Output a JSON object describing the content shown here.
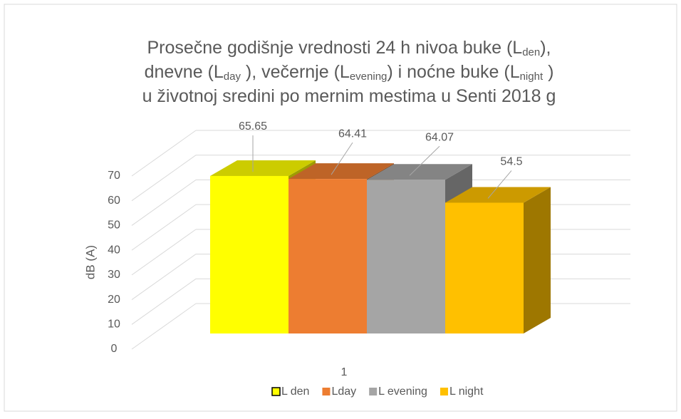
{
  "chart_data": {
    "type": "bar3d",
    "title": [
      [
        "Prosečne godišnje vrednosti 24 h nivoa buke (L",
        "den",
        "),"
      ],
      [
        "dnevne (L",
        "day",
        " ), večernje (L",
        "evening",
        ") i noćne buke (L",
        "night",
        " )"
      ],
      [
        "u životnoj sredini po mernim mestima u Senti 2018 g"
      ]
    ],
    "categories": [
      "1"
    ],
    "y_label": "dB (A)",
    "series": [
      {
        "name": "L den",
        "color": "#ffff00",
        "values": [
          65.65
        ]
      },
      {
        "name": "Lday",
        "color": "#ed7d31",
        "values": [
          64.41
        ]
      },
      {
        "name": "L evening",
        "color": "#a5a5a5",
        "values": [
          64.07
        ]
      },
      {
        "name": "L night",
        "color": "#ffc000",
        "values": [
          54.5
        ]
      }
    ],
    "ylim": [
      0,
      70
    ],
    "yticks": [
      0,
      10,
      20,
      30,
      40,
      50,
      60,
      70
    ],
    "grid": true
  }
}
